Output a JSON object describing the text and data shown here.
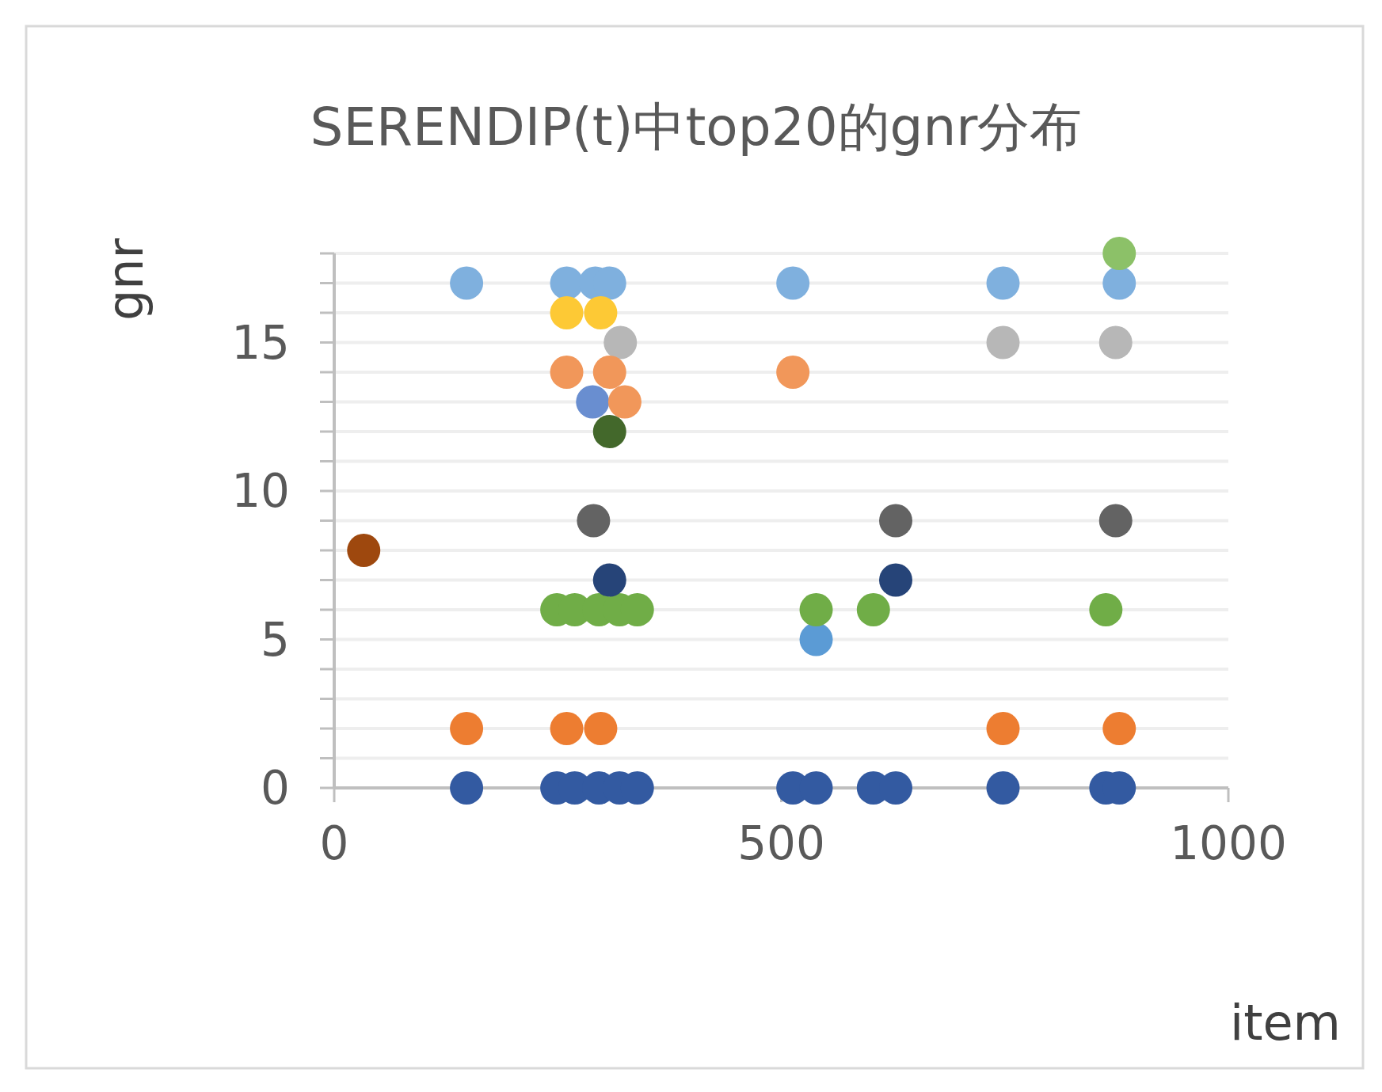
{
  "chart_data": {
    "type": "scatter",
    "title": "SERENDIP(t)中top20的gnr分布",
    "xlabel": "item",
    "ylabel": "gnr",
    "xlim": [
      0,
      1000
    ],
    "xticks": [
      0,
      500,
      1000
    ],
    "ylim": [
      0,
      18
    ],
    "yticks": [
      0,
      {
        "value": 1,
        "label": null
      },
      {
        "value": 2,
        "label": null
      },
      {
        "value": 3,
        "label": null
      },
      {
        "value": 4,
        "label": null
      },
      5,
      {
        "value": 6,
        "label": null
      },
      {
        "value": 7,
        "label": null
      },
      {
        "value": 8,
        "label": null
      },
      {
        "value": 9,
        "label": null
      },
      10,
      {
        "value": 11,
        "label": null
      },
      {
        "value": 12,
        "label": null
      },
      {
        "value": 13,
        "label": null
      },
      {
        "value": 14,
        "label": null
      },
      15,
      {
        "value": 16,
        "label": null
      },
      {
        "value": 17,
        "label": null
      },
      {
        "value": 18,
        "label": null
      }
    ],
    "grid": "y",
    "marker": "circle",
    "series": [
      {
        "x": [
          33,
          148,
          148,
          148,
          249,
          269,
          296,
          319,
          339,
          249,
          269,
          296,
          319,
          339,
          260,
          292,
          308,
          260,
          298,
          320,
          260,
          308,
          289,
          325,
          308,
          290,
          308,
          260,
          298,
          513,
          513,
          513,
          539,
          539,
          539,
          603,
          603,
          628,
          628,
          628,
          748,
          748,
          748,
          748,
          874,
          874,
          863,
          863,
          878,
          878,
          878,
          878
        ],
        "values": [
          8,
          0,
          2,
          17,
          0,
          0,
          0,
          0,
          0,
          6,
          6,
          6,
          6,
          6,
          17,
          17,
          17,
          16,
          16,
          15,
          14,
          14,
          13,
          13,
          12,
          9,
          7,
          2,
          2,
          0,
          14,
          17,
          0,
          5,
          6,
          0,
          6,
          0,
          7,
          9,
          0,
          2,
          15,
          17,
          9,
          15,
          6,
          0,
          2,
          17,
          18,
          0
        ],
        "colors": [
          "#9e480e",
          "#335aa1",
          "#ed7d31",
          "#7fb0de",
          "#335aa1",
          "#335aa1",
          "#335aa1",
          "#335aa1",
          "#335aa1",
          "#70ad47",
          "#70ad47",
          "#70ad47",
          "#70ad47",
          "#70ad47",
          "#7fb0de",
          "#7fb0de",
          "#7fb0de",
          "#fdc935",
          "#fdc935",
          "#b7b7b7",
          "#f1975a",
          "#f1975a",
          "#698ed0",
          "#f1975a",
          "#43682b",
          "#636363",
          "#264478",
          "#ed7d31",
          "#ed7d31",
          "#335aa1",
          "#f1975a",
          "#7fb0de",
          "#335aa1",
          "#5b9bd5",
          "#70ad47",
          "#335aa1",
          "#70ad47",
          "#335aa1",
          "#264478",
          "#636363",
          "#335aa1",
          "#ed7d31",
          "#b7b7b7",
          "#7fb0de",
          "#636363",
          "#b7b7b7",
          "#70ad47",
          "#335aa1",
          "#ed7d31",
          "#7fb0de",
          "#8cc168",
          "#335aa1"
        ]
      }
    ]
  }
}
